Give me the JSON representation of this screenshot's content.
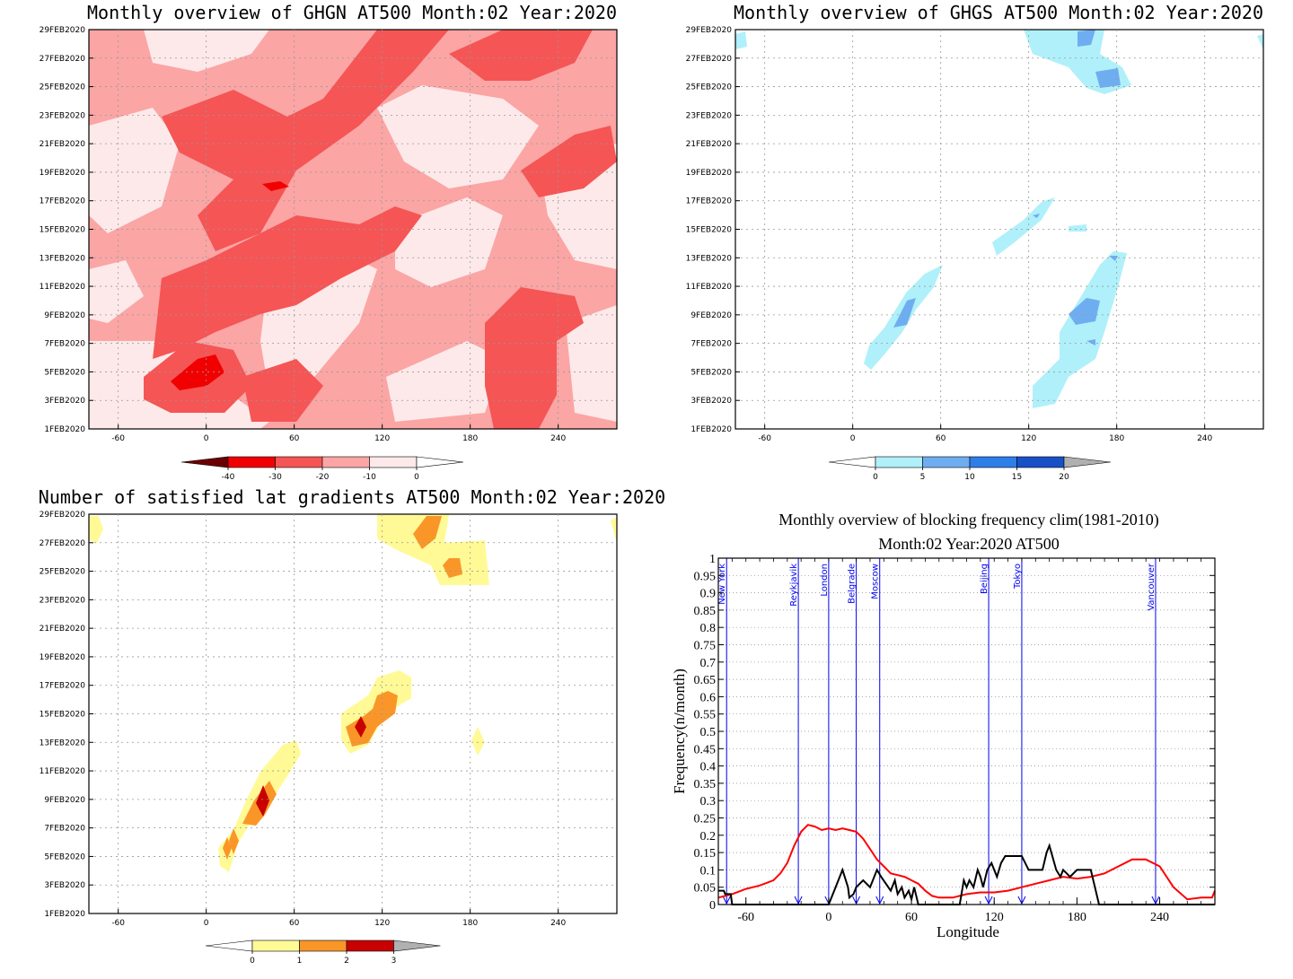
{
  "panels": [
    {
      "id": "ghgn",
      "title": "Monthly overview of GHGN AT500 Month:02 Year:2020",
      "x_ticks": [
        "-60",
        "0",
        "60",
        "120",
        "180",
        "240"
      ],
      "y_ticks": [
        "1FEB2020",
        "3FEB2020",
        "5FEB2020",
        "7FEB2020",
        "9FEB2020",
        "11FEB2020",
        "13FEB2020",
        "15FEB2020",
        "17FEB2020",
        "19FEB2020",
        "21FEB2020",
        "23FEB2020",
        "25FEB2020",
        "27FEB2020",
        "29FEB2020"
      ],
      "colorbar": {
        "labels": [
          "-40",
          "-30",
          "-20",
          "-10",
          "0"
        ],
        "colors": [
          "#6b0000",
          "#f00000",
          "#f55555",
          "#fba5a5",
          "#fde9e9",
          "#ffffff"
        ]
      }
    },
    {
      "id": "ghgs",
      "title": "Monthly overview of GHGS AT500 Month:02 Year:2020",
      "x_ticks": [
        "-60",
        "0",
        "60",
        "120",
        "180",
        "240"
      ],
      "y_ticks": [
        "1FEB2020",
        "3FEB2020",
        "5FEB2020",
        "7FEB2020",
        "9FEB2020",
        "11FEB2020",
        "13FEB2020",
        "15FEB2020",
        "17FEB2020",
        "19FEB2020",
        "21FEB2020",
        "23FEB2020",
        "25FEB2020",
        "27FEB2020",
        "29FEB2020"
      ],
      "colorbar": {
        "labels": [
          "0",
          "5",
          "10",
          "15",
          "20"
        ],
        "colors": [
          "#ffffff",
          "#b0f0fa",
          "#6eaef0",
          "#2e7ee8",
          "#1850c8",
          "#b0b0b0"
        ]
      }
    },
    {
      "id": "satisfied",
      "title": "Number of satisfied lat gradients AT500 Month:02 Year:2020",
      "x_ticks": [
        "-60",
        "0",
        "60",
        "120",
        "180",
        "240"
      ],
      "y_ticks": [
        "1FEB2020",
        "3FEB2020",
        "5FEB2020",
        "7FEB2020",
        "9FEB2020",
        "11FEB2020",
        "13FEB2020",
        "15FEB2020",
        "17FEB2020",
        "19FEB2020",
        "21FEB2020",
        "23FEB2020",
        "25FEB2020",
        "27FEB2020",
        "29FEB2020"
      ],
      "colorbar": {
        "labels": [
          "0",
          "1",
          "2",
          "3"
        ],
        "colors": [
          "#ffffff",
          "#fffa96",
          "#fa9628",
          "#c80000",
          "#b0b0b0"
        ]
      }
    }
  ],
  "chart_data": [
    {
      "type": "heatmap",
      "title": "Monthly overview of GHGN AT500 Month:02 Year:2020",
      "xlim": [
        -80,
        280
      ],
      "x_tick_values": [
        -60,
        0,
        60,
        120,
        180,
        240
      ],
      "y_tick_labels": [
        "1FEB2020",
        "3FEB2020",
        "5FEB2020",
        "7FEB2020",
        "9FEB2020",
        "11FEB2020",
        "13FEB2020",
        "15FEB2020",
        "17FEB2020",
        "19FEB2020",
        "21FEB2020",
        "23FEB2020",
        "25FEB2020",
        "27FEB2020",
        "29FEB2020"
      ],
      "levels": [
        -40,
        -30,
        -20,
        -10,
        0
      ]
    },
    {
      "type": "heatmap",
      "title": "Monthly overview of GHGS AT500 Month:02 Year:2020",
      "xlim": [
        -80,
        280
      ],
      "x_tick_values": [
        -60,
        0,
        60,
        120,
        180,
        240
      ],
      "y_tick_labels": [
        "1FEB2020",
        "3FEB2020",
        "5FEB2020",
        "7FEB2020",
        "9FEB2020",
        "11FEB2020",
        "13FEB2020",
        "15FEB2020",
        "17FEB2020",
        "19FEB2020",
        "21FEB2020",
        "23FEB2020",
        "25FEB2020",
        "27FEB2020",
        "29FEB2020"
      ],
      "levels": [
        0,
        5,
        10,
        15,
        20
      ]
    },
    {
      "type": "heatmap",
      "title": "Number of satisfied lat gradients AT500 Month:02 Year:2020",
      "xlim": [
        -80,
        280
      ],
      "x_tick_values": [
        -60,
        0,
        60,
        120,
        180,
        240
      ],
      "y_tick_labels": [
        "1FEB2020",
        "3FEB2020",
        "5FEB2020",
        "7FEB2020",
        "9FEB2020",
        "11FEB2020",
        "13FEB2020",
        "15FEB2020",
        "17FEB2020",
        "19FEB2020",
        "21FEB2020",
        "23FEB2020",
        "25FEB2020",
        "27FEB2020",
        "29FEB2020"
      ],
      "levels": [
        0,
        1,
        2,
        3
      ]
    },
    {
      "type": "line",
      "title": "Monthly overview of blocking frequency clim(1981-2010)",
      "subtitle": "Month:02 Year:2020  AT500",
      "xlabel": "Longitude",
      "ylabel": "Frequency(n/month)",
      "xlim": [
        -80,
        280
      ],
      "ylim": [
        0,
        1
      ],
      "x_ticks": [
        -60,
        0,
        60,
        120,
        180,
        240
      ],
      "x_tick_labels": [
        "-60",
        "0",
        "60",
        "120",
        "180",
        "240"
      ],
      "y_ticks": [
        0,
        0.05,
        0.1,
        0.15,
        0.2,
        0.25,
        0.3,
        0.35,
        0.4,
        0.45,
        0.5,
        0.55,
        0.6,
        0.65,
        0.7,
        0.75,
        0.8,
        0.85,
        0.9,
        0.95,
        1
      ],
      "y_tick_labels": [
        "0",
        "0.05",
        "0.1",
        "0.15",
        "0.2",
        "0.25",
        "0.3",
        "0.35",
        "0.4",
        "0.45",
        "0.5",
        "0.55",
        "0.6",
        "0.65",
        "0.7",
        "0.75",
        "0.8",
        "0.85",
        "0.9",
        "0.95",
        "1"
      ],
      "cities": [
        {
          "name": "New York",
          "lon": -74
        },
        {
          "name": "Reykjavik",
          "lon": -22
        },
        {
          "name": "London",
          "lon": 0
        },
        {
          "name": "Belgrade",
          "lon": 20
        },
        {
          "name": "Moscow",
          "lon": 37
        },
        {
          "name": "Beijing",
          "lon": 116
        },
        {
          "name": "Tokyo",
          "lon": 140
        },
        {
          "name": "Vancouver",
          "lon": 237
        }
      ],
      "series": [
        {
          "color": "#ff0000",
          "x": [
            -80,
            -70,
            -60,
            -50,
            -40,
            -35,
            -30,
            -25,
            -20,
            -15,
            -10,
            -5,
            0,
            5,
            10,
            15,
            20,
            25,
            30,
            35,
            40,
            45,
            50,
            55,
            60,
            65,
            70,
            75,
            80,
            90,
            100,
            110,
            120,
            130,
            140,
            150,
            160,
            170,
            180,
            190,
            200,
            210,
            220,
            230,
            240,
            250,
            260,
            270,
            278,
            280
          ],
          "y": [
            0.02,
            0.03,
            0.045,
            0.055,
            0.07,
            0.09,
            0.12,
            0.17,
            0.21,
            0.23,
            0.225,
            0.215,
            0.22,
            0.215,
            0.22,
            0.215,
            0.21,
            0.19,
            0.16,
            0.13,
            0.11,
            0.09,
            0.085,
            0.08,
            0.07,
            0.06,
            0.04,
            0.025,
            0.02,
            0.02,
            0.03,
            0.035,
            0.035,
            0.04,
            0.05,
            0.06,
            0.07,
            0.08,
            0.075,
            0.08,
            0.09,
            0.11,
            0.13,
            0.13,
            0.11,
            0.05,
            0.015,
            0.02,
            0.02,
            0.04
          ]
        },
        {
          "color": "#000000",
          "x": [
            -80,
            -76,
            -75,
            -71,
            -70,
            0,
            5,
            10,
            14,
            15,
            18,
            20,
            25,
            30,
            35,
            38,
            45,
            48,
            50,
            53,
            55,
            58,
            60,
            62,
            65,
            80,
            95,
            98,
            100,
            102,
            105,
            108,
            110,
            112,
            115,
            118,
            122,
            125,
            128,
            130,
            135,
            140,
            145,
            150,
            155,
            158,
            160,
            165,
            168,
            170,
            175,
            180,
            185,
            190,
            193,
            196,
            280
          ],
          "y": [
            0.04,
            0.04,
            0.03,
            0.03,
            0,
            0,
            0.05,
            0.1,
            0.05,
            0.02,
            0.03,
            0.05,
            0.07,
            0.05,
            0.1,
            0.08,
            0.04,
            0.07,
            0.03,
            0.05,
            0.02,
            0.04,
            0.015,
            0.05,
            0,
            0,
            0,
            0.07,
            0.05,
            0.07,
            0.05,
            0.1,
            0.08,
            0.05,
            0.1,
            0.12,
            0.08,
            0.12,
            0.14,
            0.14,
            0.14,
            0.14,
            0.1,
            0.1,
            0.1,
            0.15,
            0.17,
            0.1,
            0.08,
            0.1,
            0.08,
            0.1,
            0.1,
            0.1,
            0.05,
            0,
            0
          ]
        }
      ]
    }
  ]
}
